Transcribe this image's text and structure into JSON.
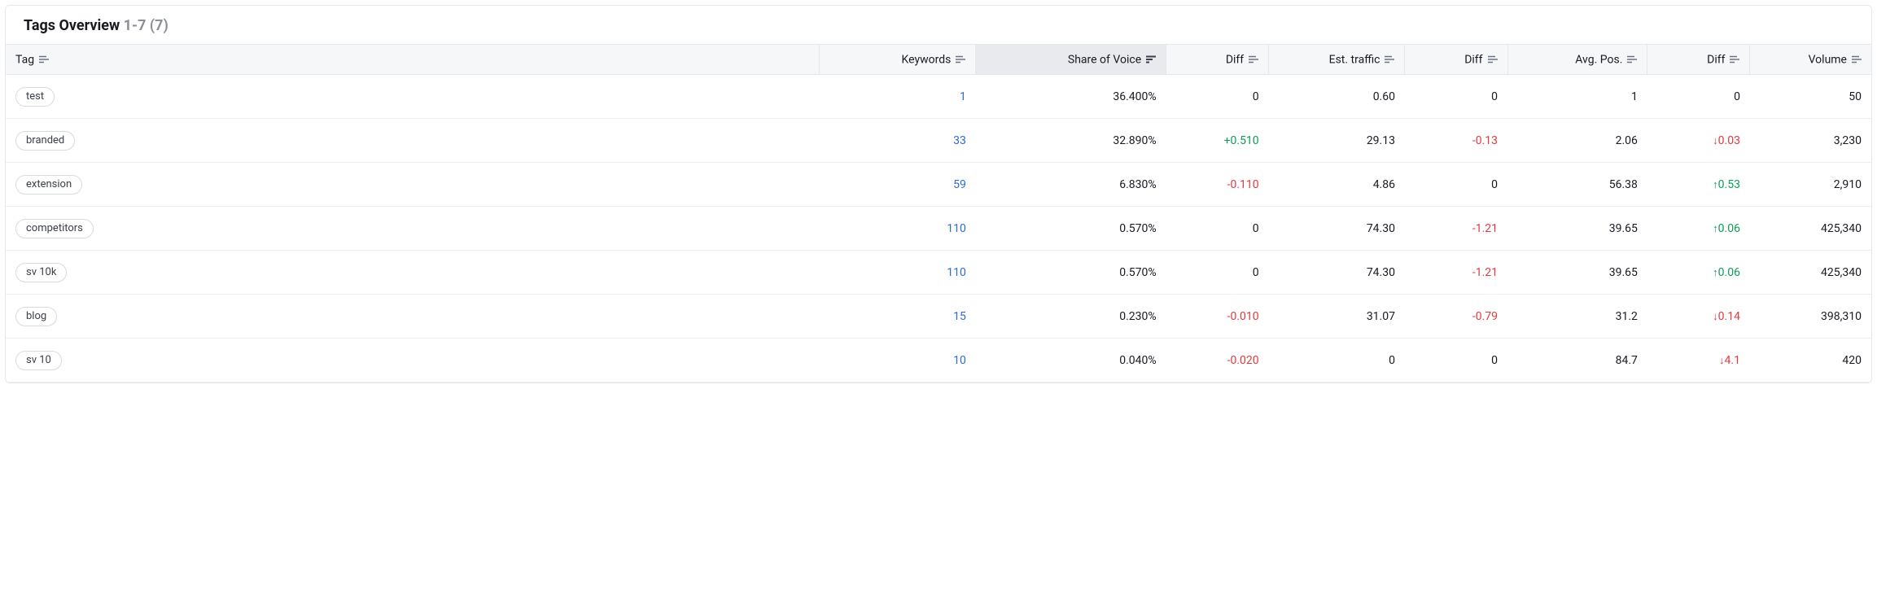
{
  "header": {
    "title": "Tags Overview",
    "range": "1-7 (7)"
  },
  "table": {
    "columns": [
      {
        "key": "tag",
        "label": "Tag",
        "align": "left",
        "sort": "neutral"
      },
      {
        "key": "keywords",
        "label": "Keywords",
        "align": "right",
        "sort": "neutral"
      },
      {
        "key": "sov",
        "label": "Share of Voice",
        "align": "right",
        "sort": "desc"
      },
      {
        "key": "diff1",
        "label": "Diff",
        "align": "right",
        "sort": "neutral"
      },
      {
        "key": "traffic",
        "label": "Est. traffic",
        "align": "right",
        "sort": "neutral"
      },
      {
        "key": "diff2",
        "label": "Diff",
        "align": "right",
        "sort": "neutral"
      },
      {
        "key": "avgpos",
        "label": "Avg. Pos.",
        "align": "right",
        "sort": "neutral"
      },
      {
        "key": "diff3",
        "label": "Diff",
        "align": "right",
        "sort": "neutral"
      },
      {
        "key": "volume",
        "label": "Volume",
        "align": "right",
        "sort": "neutral"
      }
    ],
    "rows": [
      {
        "tag": "test",
        "keywords": "1",
        "sov": "36.400%",
        "diff1": {
          "text": "0",
          "tone": "none"
        },
        "traffic": "0.60",
        "diff2": {
          "text": "0",
          "tone": "none"
        },
        "avgpos": "1",
        "diff3": {
          "text": "0",
          "tone": "none",
          "arrow": ""
        },
        "volume": "50"
      },
      {
        "tag": "branded",
        "keywords": "33",
        "sov": "32.890%",
        "diff1": {
          "text": "+0.510",
          "tone": "pos"
        },
        "traffic": "29.13",
        "diff2": {
          "text": "-0.13",
          "tone": "neg"
        },
        "avgpos": "2.06",
        "diff3": {
          "text": "0.03",
          "tone": "neg",
          "arrow": "↓"
        },
        "volume": "3,230"
      },
      {
        "tag": "extension",
        "keywords": "59",
        "sov": "6.830%",
        "diff1": {
          "text": "-0.110",
          "tone": "neg"
        },
        "traffic": "4.86",
        "diff2": {
          "text": "0",
          "tone": "none"
        },
        "avgpos": "56.38",
        "diff3": {
          "text": "0.53",
          "tone": "pos",
          "arrow": "↑"
        },
        "volume": "2,910"
      },
      {
        "tag": "competitors",
        "keywords": "110",
        "sov": "0.570%",
        "diff1": {
          "text": "0",
          "tone": "none"
        },
        "traffic": "74.30",
        "diff2": {
          "text": "-1.21",
          "tone": "neg"
        },
        "avgpos": "39.65",
        "diff3": {
          "text": "0.06",
          "tone": "pos",
          "arrow": "↑"
        },
        "volume": "425,340"
      },
      {
        "tag": "sv 10k",
        "keywords": "110",
        "sov": "0.570%",
        "diff1": {
          "text": "0",
          "tone": "none"
        },
        "traffic": "74.30",
        "diff2": {
          "text": "-1.21",
          "tone": "neg"
        },
        "avgpos": "39.65",
        "diff3": {
          "text": "0.06",
          "tone": "pos",
          "arrow": "↑"
        },
        "volume": "425,340"
      },
      {
        "tag": "blog",
        "keywords": "15",
        "sov": "0.230%",
        "diff1": {
          "text": "-0.010",
          "tone": "neg"
        },
        "traffic": "31.07",
        "diff2": {
          "text": "-0.79",
          "tone": "neg"
        },
        "avgpos": "31.2",
        "diff3": {
          "text": "0.14",
          "tone": "neg",
          "arrow": "↓"
        },
        "volume": "398,310"
      },
      {
        "tag": "sv 10",
        "keywords": "10",
        "sov": "0.040%",
        "diff1": {
          "text": "-0.020",
          "tone": "neg"
        },
        "traffic": "0",
        "diff2": {
          "text": "0",
          "tone": "none"
        },
        "avgpos": "84.7",
        "diff3": {
          "text": "4.1",
          "tone": "neg",
          "arrow": "↓"
        },
        "volume": "420"
      }
    ]
  },
  "colors": {
    "text": "#171a22",
    "muted": "#8a8f9a",
    "border": "#e5e7eb",
    "row_border": "#eceef0",
    "header_bg": "#f6f7f8",
    "header_sorted_bg": "#e9eaed",
    "link": "#2e6bd6",
    "positive": "#0f9d58",
    "negative": "#e03a3e",
    "pill_border": "#d7dade",
    "icon": "#6b7280"
  }
}
